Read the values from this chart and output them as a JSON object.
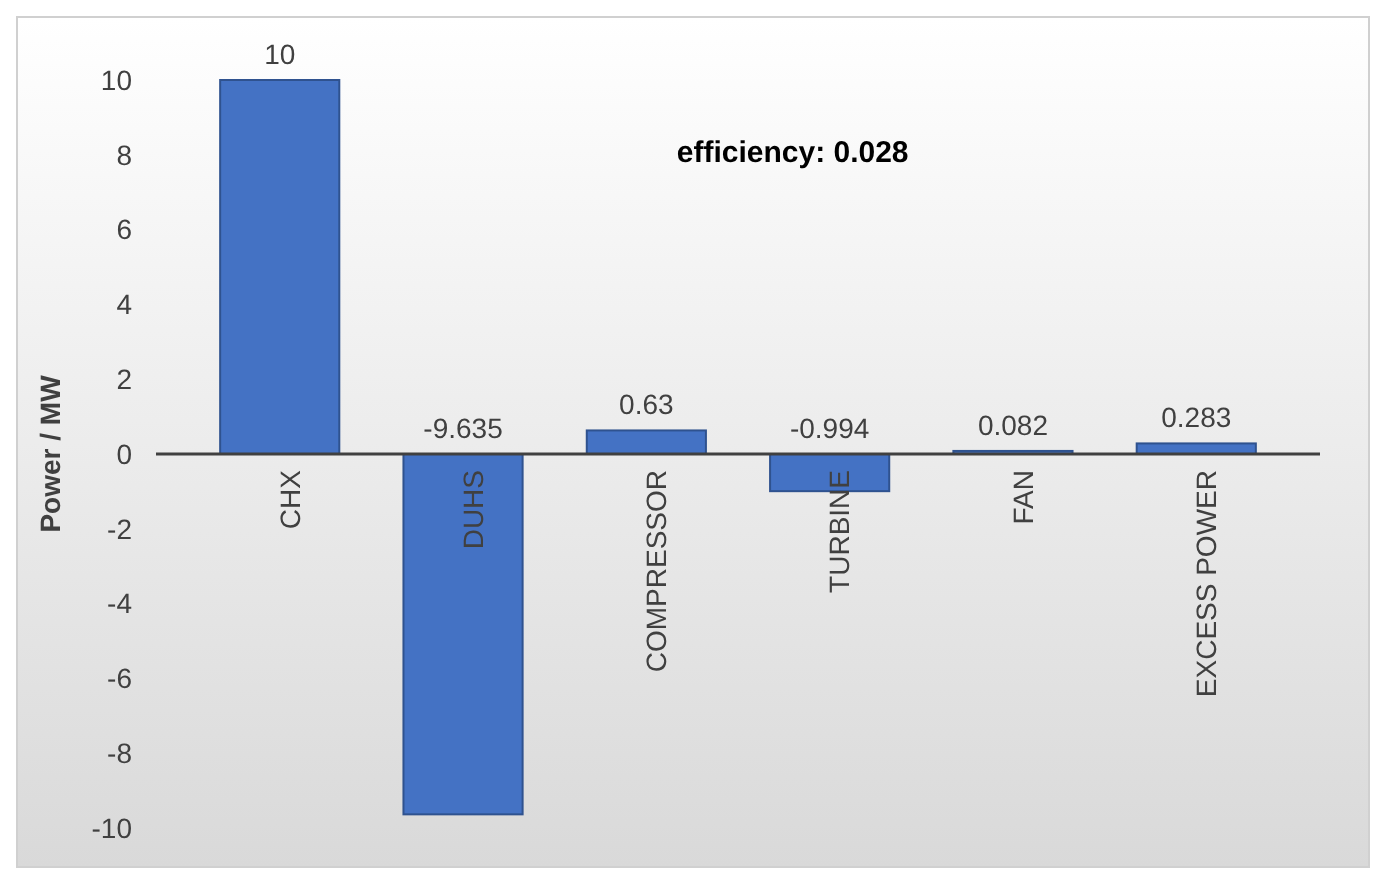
{
  "chart_data": {
    "type": "bar",
    "categories": [
      "CHX",
      "DUHS",
      "COMPRESSOR",
      "TURBINE",
      "FAN",
      "EXCESS POWER"
    ],
    "values": [
      10,
      -9.635,
      0.63,
      -0.994,
      0.082,
      0.283
    ],
    "color": "#4472c4",
    "data_labels": true,
    "ylabel": "Power / MW",
    "ylim": [
      -10,
      10
    ],
    "yticks": [
      -10,
      -8,
      -6,
      -4,
      -2,
      0,
      2,
      4,
      6,
      8,
      10
    ],
    "annotations": [
      "efficiency: 0.028"
    ]
  }
}
